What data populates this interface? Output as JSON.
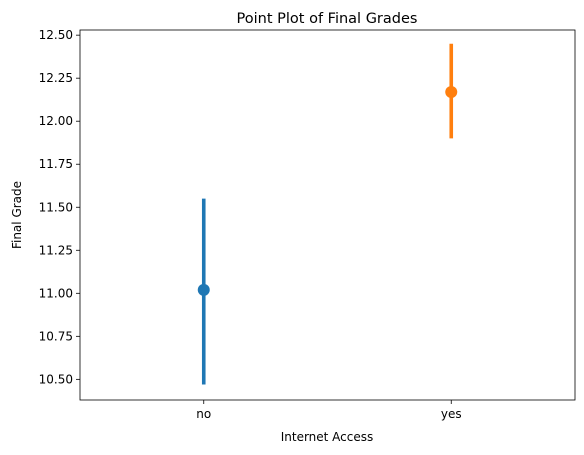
{
  "chart_data": {
    "type": "scatter",
    "subtype": "point-plot-with-error-bars",
    "title": "Point Plot of Final Grades",
    "xlabel": "Internet Access",
    "ylabel": "Final Grade",
    "categories": [
      "no",
      "yes"
    ],
    "points": [
      {
        "category": "no",
        "mean": 11.02,
        "ci_low": 10.47,
        "ci_high": 11.55,
        "color": "#1f77b4"
      },
      {
        "category": "yes",
        "mean": 12.17,
        "ci_low": 11.9,
        "ci_high": 12.45,
        "color": "#ff7f0e"
      }
    ],
    "ylim": [
      10.38,
      12.53
    ],
    "y_ticks": [
      10.5,
      10.75,
      11.0,
      11.25,
      11.5,
      11.75,
      12.0,
      12.25,
      12.5
    ],
    "y_tick_labels": [
      "10.50",
      "10.75",
      "11.00",
      "11.25",
      "11.50",
      "11.75",
      "12.00",
      "12.25",
      "12.50"
    ],
    "grid": false,
    "legend": "none"
  }
}
